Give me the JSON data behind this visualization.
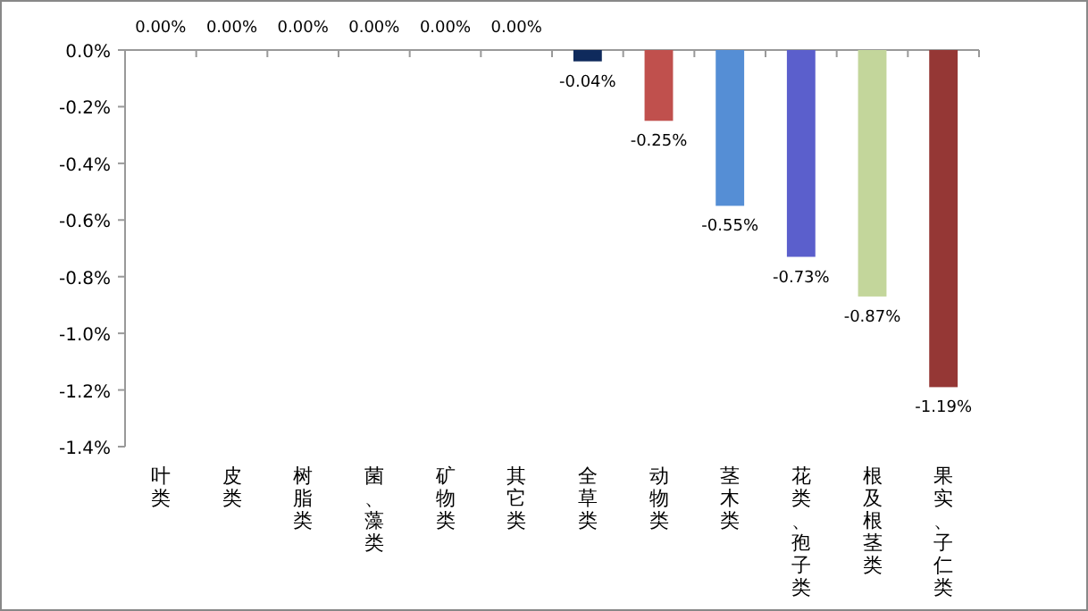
{
  "chart_data": {
    "type": "bar",
    "categories": [
      "叶类",
      "皮类",
      "树脂类",
      "菌、藻类",
      "矿物类",
      "其它类",
      "全草类",
      "动物类",
      "茎木类",
      "花类、孢子类",
      "根及根茎类",
      "果实、子仁类"
    ],
    "values": [
      0,
      0,
      0,
      0,
      0,
      0,
      -0.04,
      -0.25,
      -0.55,
      -0.73,
      -0.87,
      -1.19
    ],
    "colors": [
      null,
      null,
      null,
      null,
      null,
      null,
      "#0f2a5c",
      "#c0504d",
      "#558ed5",
      "#5b5fcc",
      "#c3d69b",
      "#953735"
    ],
    "value_labels": [
      "0.00%",
      "0.00%",
      "0.00%",
      "0.00%",
      "0.00%",
      "0.00%",
      "-0.04%",
      "-0.25%",
      "-0.55%",
      "-0.73%",
      "-0.87%",
      "-1.19%"
    ],
    "ylim": [
      -1.4,
      0
    ],
    "yticks": [
      {
        "value": 0,
        "label": "0.0%"
      },
      {
        "value": -0.2,
        "label": "-0.2%"
      },
      {
        "value": -0.4,
        "label": "-0.4%"
      },
      {
        "value": -0.6,
        "label": "-0.6%"
      },
      {
        "value": -0.8,
        "label": "-0.8%"
      },
      {
        "value": -1.0,
        "label": "-1.0%"
      },
      {
        "value": -1.2,
        "label": "-1.2%"
      },
      {
        "value": -1.4,
        "label": "-1.4%"
      }
    ],
    "grid": false
  }
}
